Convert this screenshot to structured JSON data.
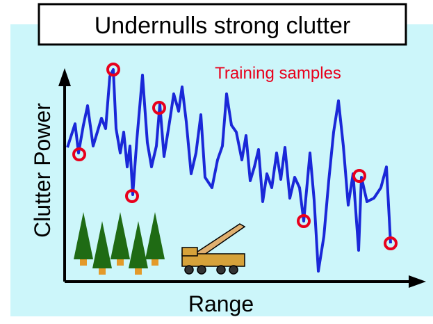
{
  "header": {
    "title": "Undernulls strong clutter"
  },
  "annotation": "Training samples",
  "axes": {
    "y_label": "Clutter Power",
    "x_label": "Range"
  }
}
